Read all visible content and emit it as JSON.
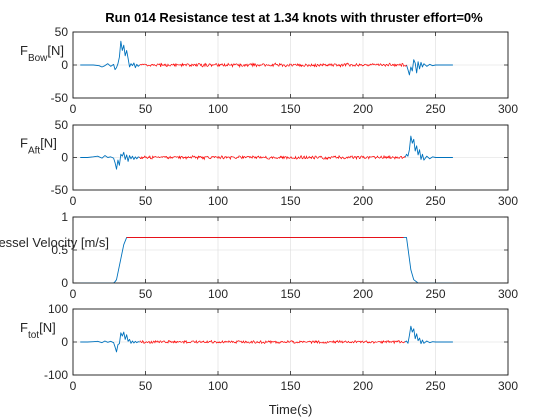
{
  "chart_data": [
    {
      "type": "line",
      "title": "Run 014 Resistance test at 1.34 knots with thruster effort=0%",
      "ylabel": {
        "base": "F",
        "sub": "Bow",
        "post": "[N]"
      },
      "xlabel": "",
      "xlim": [
        0,
        300
      ],
      "ylim": [
        -50,
        50
      ],
      "xticks": [
        0,
        50,
        100,
        150,
        200,
        250,
        300
      ],
      "yticks": [
        -50,
        0,
        50
      ],
      "grid": true,
      "series": [
        {
          "color": "#0072bd",
          "segments": [
            {
              "x": [
                5,
                10,
                14,
                18,
                20,
                22,
                24,
                26,
                28,
                29,
                30,
                31,
                32,
                33,
                34,
                35,
                36,
                37,
                38,
                39,
                40,
                41,
                42,
                43,
                44,
                45,
                46
              ],
              "y": [
                0,
                0,
                0,
                -1,
                -3,
                -1,
                2,
                -2,
                1,
                -7,
                -4,
                2,
                12,
                36,
                22,
                30,
                14,
                22,
                10,
                -3,
                2,
                -1,
                3,
                -4,
                1,
                -2,
                0
              ]
            },
            {
              "x": [
                230,
                231,
                232,
                233,
                234,
                235,
                236,
                237,
                238,
                239,
                240,
                241,
                242,
                244,
                246,
                248,
                250,
                255,
                262
              ],
              "y": [
                0,
                -7,
                -15,
                -3,
                -9,
                8,
                3,
                -12,
                5,
                -6,
                4,
                -3,
                2,
                -2,
                1,
                -1,
                0,
                0,
                0
              ]
            }
          ]
        },
        {
          "color": "#ff0000",
          "noise": {
            "x_start": 46,
            "x_end": 230,
            "step": 0.5,
            "amplitude": 3
          }
        }
      ]
    },
    {
      "type": "line",
      "title": "",
      "ylabel": {
        "base": "F",
        "sub": "Aft",
        "post": "[N]"
      },
      "xlabel": "",
      "xlim": [
        0,
        300
      ],
      "ylim": [
        -50,
        50
      ],
      "xticks": [
        0,
        50,
        100,
        150,
        200,
        250,
        300
      ],
      "yticks": [
        -50,
        0,
        50
      ],
      "grid": true,
      "series": [
        {
          "color": "#0072bd",
          "segments": [
            {
              "x": [
                5,
                10,
                14,
                17,
                20,
                22,
                24,
                26,
                28,
                29,
                30,
                31,
                32,
                33,
                34,
                35,
                36,
                37,
                38,
                39,
                40,
                41,
                42,
                43,
                44,
                45,
                46
              ],
              "y": [
                0,
                0,
                1,
                2,
                -1,
                3,
                0,
                1,
                -1,
                -8,
                -18,
                -4,
                -12,
                5,
                2,
                8,
                -3,
                4,
                -6,
                3,
                -2,
                2,
                -3,
                1,
                -2,
                1,
                0
              ]
            },
            {
              "x": [
                229,
                230,
                231,
                232,
                233,
                234,
                235,
                236,
                237,
                238,
                239,
                240,
                241,
                242,
                244,
                246,
                248,
                250,
                255,
                262
              ],
              "y": [
                0,
                5,
                2,
                12,
                33,
                22,
                28,
                10,
                18,
                4,
                12,
                -3,
                5,
                -4,
                2,
                -2,
                1,
                0,
                0,
                0
              ]
            }
          ]
        },
        {
          "color": "#ff0000",
          "noise": {
            "x_start": 46,
            "x_end": 229,
            "step": 0.5,
            "amplitude": 3
          }
        }
      ]
    },
    {
      "type": "line",
      "title": "",
      "ylabel": {
        "base": "Vessel Velocity [m/s]",
        "sub": "",
        "post": ""
      },
      "xlabel": "",
      "xlim": [
        0,
        300
      ],
      "ylim": [
        0,
        1
      ],
      "xticks": [
        0,
        50,
        100,
        150,
        200,
        250,
        300
      ],
      "yticks": [
        0,
        0.5,
        1
      ],
      "grid": true,
      "series": [
        {
          "color": "#0072bd",
          "segments": [
            {
              "x": [
                5,
                28,
                29,
                30,
                35,
                37,
                40,
                228,
                230,
                233,
                235,
                238,
                262
              ],
              "y": [
                0,
                0,
                0.02,
                0.05,
                0.58,
                0.69,
                0.69,
                0.69,
                0.69,
                0.2,
                0.05,
                0,
                0
              ]
            }
          ]
        },
        {
          "color": "#ff0000",
          "segments": [
            {
              "x": [
                37,
                228
              ],
              "y": [
                0.69,
                0.69
              ]
            }
          ]
        }
      ]
    },
    {
      "type": "line",
      "title": "",
      "ylabel": {
        "base": "F",
        "sub": "tot",
        "post": "[N]"
      },
      "xlabel": "Time(s)",
      "xlim": [
        0,
        300
      ],
      "ylim": [
        -100,
        100
      ],
      "xticks": [
        0,
        50,
        100,
        150,
        200,
        250,
        300
      ],
      "yticks": [
        -100,
        0,
        100
      ],
      "grid": true,
      "series": [
        {
          "color": "#0072bd",
          "segments": [
            {
              "x": [
                5,
                10,
                14,
                17,
                20,
                22,
                24,
                26,
                28,
                29,
                30,
                31,
                32,
                33,
                34,
                35,
                36,
                37,
                38,
                39,
                40,
                41,
                42,
                43,
                44,
                45,
                46
              ],
              "y": [
                0,
                0,
                1,
                2,
                -2,
                3,
                -1,
                2,
                -2,
                -15,
                -30,
                -8,
                -5,
                28,
                18,
                30,
                8,
                22,
                2,
                8,
                -4,
                3,
                -3,
                2,
                -2,
                1,
                0
              ]
            },
            {
              "x": [
                229,
                230,
                231,
                232,
                233,
                234,
                235,
                236,
                237,
                238,
                239,
                240,
                241,
                242,
                244,
                246,
                248,
                250,
                255,
                262
              ],
              "y": [
                0,
                3,
                -4,
                20,
                48,
                30,
                40,
                10,
                25,
                4,
                12,
                -5,
                6,
                -4,
                3,
                -2,
                1,
                0,
                0,
                0
              ]
            }
          ]
        },
        {
          "color": "#ff0000",
          "noise": {
            "x_start": 46,
            "x_end": 229,
            "step": 0.5,
            "amplitude": 5
          }
        }
      ]
    }
  ]
}
